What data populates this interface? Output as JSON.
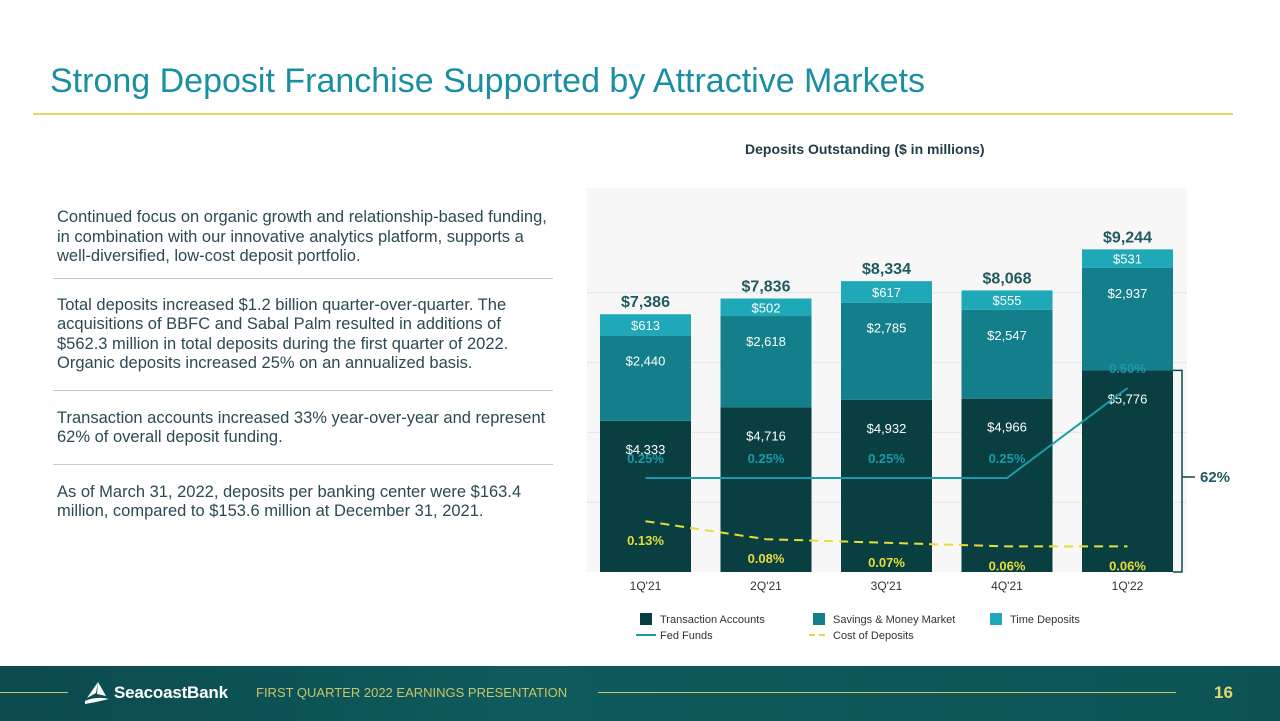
{
  "title": "Strong Deposit Franchise Supported by Attractive Markets",
  "bullets": [
    "Continued focus on organic growth and relationship-based funding, in combination with our innovative analytics platform, supports a well-diversified, low-cost deposit portfolio.",
    "Total deposits increased $1.2 billion quarter-over-quarter. The acquisitions of BBFC and Sabal Palm resulted in additions of $562.3 million in total deposits during the first quarter of 2022. Organic deposits increased 25% on an annualized basis.",
    "Transaction accounts increased 33% year-over-year and represent 62% of overall deposit funding.",
    "As of March 31, 2022, deposits per banking center were $163.4 million, compared to $153.6 million at December 31, 2021."
  ],
  "footer": {
    "brand": "SeacoastBank",
    "label": "FIRST QUARTER 2022 EARNINGS PRESENTATION",
    "page_number": "16"
  },
  "colors": {
    "transaction": "#0a3f42",
    "savings": "#137f8a",
    "time": "#1fa8b8",
    "fed_funds": "#1a9aaa",
    "cost_of_deposits": "#e6dc3a",
    "title": "#1a8fa3"
  },
  "chart_data": {
    "type": "bar",
    "stacked": true,
    "title": "Deposits Outstanding ($ in millions)",
    "categories": [
      "1Q'21",
      "2Q'21",
      "3Q'21",
      "4Q'21",
      "1Q'22"
    ],
    "series": [
      {
        "name": "Transaction Accounts",
        "values": [
          4333,
          4716,
          4932,
          4966,
          5776
        ],
        "labels": [
          "$4,333",
          "$4,716",
          "$4,932",
          "$4,966",
          "$5,776"
        ]
      },
      {
        "name": "Savings & Money Market",
        "values": [
          2440,
          2618,
          2785,
          2547,
          2937
        ],
        "labels": [
          "$2,440",
          "$2,618",
          "$2,785",
          "$2,547",
          "$2,937"
        ]
      },
      {
        "name": "Time Deposits",
        "values": [
          613,
          502,
          617,
          555,
          531
        ],
        "labels": [
          "$613",
          "$502",
          "$617",
          "$555",
          "$531"
        ]
      }
    ],
    "totals": [
      7386,
      7836,
      8334,
      8068,
      9244
    ],
    "total_labels": [
      "$7,386",
      "$7,836",
      "$8,334",
      "$8,068",
      "$9,244"
    ],
    "rate_lines": [
      {
        "name": "Fed Funds",
        "values": [
          0.25,
          0.25,
          0.25,
          0.25,
          0.5
        ],
        "labels": [
          "0.25%",
          "0.25%",
          "0.25%",
          "0.25%",
          "0.50%"
        ]
      },
      {
        "name": "Cost of Deposits",
        "values": [
          0.13,
          0.08,
          0.07,
          0.06,
          0.06
        ],
        "labels": [
          "0.13%",
          "0.08%",
          "0.07%",
          "0.06%",
          "0.06%"
        ]
      }
    ],
    "callout": "62%",
    "ylim": [
      0,
      10000
    ],
    "legend_position": "bottom"
  }
}
